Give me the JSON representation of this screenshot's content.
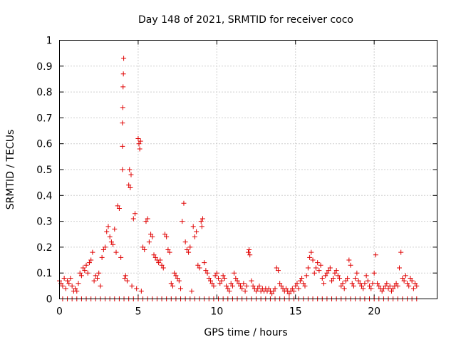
{
  "chart_data": {
    "type": "scatter",
    "title": "Day 148 of 2021, SRMTID for receiver coco",
    "xlabel": "GPS time / hours",
    "ylabel": "SRMTID / TECUs",
    "xlim": [
      0,
      24
    ],
    "ylim": [
      0,
      1
    ],
    "xticks": [
      "0",
      "5",
      "10",
      "15",
      "20"
    ],
    "yticks": [
      "0",
      "0.1",
      "0.2",
      "0.3",
      "0.4",
      "0.5",
      "0.6",
      "0.7",
      "0.8",
      "0.9",
      "1"
    ],
    "grid": true,
    "marker": "+",
    "color": "#e00000",
    "series": [
      {
        "name": "SRMTID",
        "points": [
          [
            0.0,
            0.07
          ],
          [
            0.1,
            0.06
          ],
          [
            0.2,
            0.05
          ],
          [
            0.3,
            0.08
          ],
          [
            0.4,
            0.04
          ],
          [
            0.5,
            0.07
          ],
          [
            0.6,
            0.06
          ],
          [
            0.7,
            0.08
          ],
          [
            0.8,
            0.05
          ],
          [
            0.9,
            0.03
          ],
          [
            1.0,
            0.04
          ],
          [
            1.1,
            0.03
          ],
          [
            1.2,
            0.06
          ],
          [
            1.3,
            0.1
          ],
          [
            1.4,
            0.09
          ],
          [
            1.5,
            0.12
          ],
          [
            1.6,
            0.11
          ],
          [
            1.7,
            0.13
          ],
          [
            1.8,
            0.1
          ],
          [
            1.9,
            0.14
          ],
          [
            2.0,
            0.15
          ],
          [
            2.1,
            0.18
          ],
          [
            2.2,
            0.07
          ],
          [
            2.3,
            0.09
          ],
          [
            2.4,
            0.08
          ],
          [
            2.5,
            0.1
          ],
          [
            2.6,
            0.05
          ],
          [
            2.7,
            0.16
          ],
          [
            2.8,
            0.19
          ],
          [
            2.9,
            0.2
          ],
          [
            3.0,
            0.26
          ],
          [
            3.1,
            0.28
          ],
          [
            3.2,
            0.24
          ],
          [
            3.3,
            0.22
          ],
          [
            3.4,
            0.21
          ],
          [
            3.5,
            0.27
          ],
          [
            3.6,
            0.18
          ],
          [
            3.7,
            0.36
          ],
          [
            3.8,
            0.35
          ],
          [
            3.9,
            0.16
          ],
          [
            4.0,
            0.68
          ],
          [
            4.02,
            0.74
          ],
          [
            4.04,
            0.82
          ],
          [
            4.06,
            0.87
          ],
          [
            4.08,
            0.93
          ],
          [
            4.0,
            0.59
          ],
          [
            4.0,
            0.5
          ],
          [
            4.15,
            0.08
          ],
          [
            4.2,
            0.09
          ],
          [
            4.3,
            0.07
          ],
          [
            4.4,
            0.44
          ],
          [
            4.45,
            0.5
          ],
          [
            4.5,
            0.43
          ],
          [
            4.55,
            0.48
          ],
          [
            4.6,
            0.05
          ],
          [
            4.7,
            0.31
          ],
          [
            4.8,
            0.33
          ],
          [
            4.9,
            0.04
          ],
          [
            5.0,
            0.62
          ],
          [
            5.05,
            0.6
          ],
          [
            5.1,
            0.58
          ],
          [
            5.15,
            0.61
          ],
          [
            5.2,
            0.03
          ],
          [
            5.3,
            0.2
          ],
          [
            5.4,
            0.19
          ],
          [
            5.5,
            0.3
          ],
          [
            5.6,
            0.31
          ],
          [
            5.7,
            0.22
          ],
          [
            5.8,
            0.25
          ],
          [
            5.9,
            0.24
          ],
          [
            6.0,
            0.17
          ],
          [
            6.1,
            0.16
          ],
          [
            6.2,
            0.15
          ],
          [
            6.3,
            0.14
          ],
          [
            6.4,
            0.15
          ],
          [
            6.5,
            0.13
          ],
          [
            6.6,
            0.12
          ],
          [
            6.7,
            0.25
          ],
          [
            6.8,
            0.24
          ],
          [
            6.9,
            0.19
          ],
          [
            7.0,
            0.18
          ],
          [
            7.1,
            0.06
          ],
          [
            7.2,
            0.05
          ],
          [
            7.3,
            0.1
          ],
          [
            7.4,
            0.09
          ],
          [
            7.5,
            0.08
          ],
          [
            7.6,
            0.07
          ],
          [
            7.7,
            0.04
          ],
          [
            7.8,
            0.3
          ],
          [
            7.9,
            0.37
          ],
          [
            8.0,
            0.22
          ],
          [
            8.1,
            0.19
          ],
          [
            8.2,
            0.18
          ],
          [
            8.3,
            0.2
          ],
          [
            8.4,
            0.03
          ],
          [
            8.5,
            0.28
          ],
          [
            8.6,
            0.24
          ],
          [
            8.7,
            0.26
          ],
          [
            8.8,
            0.13
          ],
          [
            8.9,
            0.12
          ],
          [
            9.0,
            0.3
          ],
          [
            9.05,
            0.28
          ],
          [
            9.1,
            0.31
          ],
          [
            9.2,
            0.14
          ],
          [
            9.3,
            0.11
          ],
          [
            9.4,
            0.1
          ],
          [
            9.5,
            0.08
          ],
          [
            9.6,
            0.07
          ],
          [
            9.7,
            0.06
          ],
          [
            9.8,
            0.05
          ],
          [
            9.9,
            0.09
          ],
          [
            10.0,
            0.1
          ],
          [
            10.1,
            0.08
          ],
          [
            10.2,
            0.06
          ],
          [
            10.3,
            0.07
          ],
          [
            10.4,
            0.09
          ],
          [
            10.5,
            0.08
          ],
          [
            10.6,
            0.05
          ],
          [
            10.7,
            0.04
          ],
          [
            10.8,
            0.03
          ],
          [
            10.9,
            0.06
          ],
          [
            11.0,
            0.05
          ],
          [
            11.1,
            0.1
          ],
          [
            11.2,
            0.08
          ],
          [
            11.3,
            0.07
          ],
          [
            11.4,
            0.06
          ],
          [
            11.5,
            0.05
          ],
          [
            11.6,
            0.04
          ],
          [
            11.7,
            0.06
          ],
          [
            11.8,
            0.03
          ],
          [
            11.9,
            0.05
          ],
          [
            12.0,
            0.18
          ],
          [
            12.05,
            0.19
          ],
          [
            12.1,
            0.17
          ],
          [
            12.2,
            0.07
          ],
          [
            12.3,
            0.05
          ],
          [
            12.4,
            0.04
          ],
          [
            12.5,
            0.03
          ],
          [
            12.6,
            0.04
          ],
          [
            12.7,
            0.05
          ],
          [
            12.8,
            0.03
          ],
          [
            12.9,
            0.04
          ],
          [
            13.0,
            0.03
          ],
          [
            13.1,
            0.04
          ],
          [
            13.2,
            0.03
          ],
          [
            13.3,
            0.04
          ],
          [
            13.4,
            0.03
          ],
          [
            13.5,
            0.02
          ],
          [
            13.6,
            0.03
          ],
          [
            13.7,
            0.04
          ],
          [
            13.8,
            0.12
          ],
          [
            13.9,
            0.11
          ],
          [
            14.0,
            0.06
          ],
          [
            14.1,
            0.05
          ],
          [
            14.2,
            0.04
          ],
          [
            14.3,
            0.03
          ],
          [
            14.4,
            0.04
          ],
          [
            14.5,
            0.03
          ],
          [
            14.6,
            0.02
          ],
          [
            14.7,
            0.03
          ],
          [
            14.8,
            0.04
          ],
          [
            14.9,
            0.03
          ],
          [
            15.0,
            0.05
          ],
          [
            15.1,
            0.06
          ],
          [
            15.2,
            0.04
          ],
          [
            15.3,
            0.07
          ],
          [
            15.4,
            0.08
          ],
          [
            15.5,
            0.06
          ],
          [
            15.6,
            0.05
          ],
          [
            15.7,
            0.09
          ],
          [
            15.8,
            0.12
          ],
          [
            15.9,
            0.16
          ],
          [
            16.0,
            0.18
          ],
          [
            16.1,
            0.15
          ],
          [
            16.2,
            0.1
          ],
          [
            16.3,
            0.12
          ],
          [
            16.4,
            0.14
          ],
          [
            16.5,
            0.11
          ],
          [
            16.6,
            0.13
          ],
          [
            16.7,
            0.08
          ],
          [
            16.8,
            0.06
          ],
          [
            16.9,
            0.09
          ],
          [
            17.0,
            0.1
          ],
          [
            17.1,
            0.11
          ],
          [
            17.2,
            0.12
          ],
          [
            17.3,
            0.07
          ],
          [
            17.4,
            0.08
          ],
          [
            17.5,
            0.1
          ],
          [
            17.6,
            0.11
          ],
          [
            17.7,
            0.09
          ],
          [
            17.8,
            0.08
          ],
          [
            17.9,
            0.05
          ],
          [
            18.0,
            0.06
          ],
          [
            18.1,
            0.04
          ],
          [
            18.2,
            0.07
          ],
          [
            18.3,
            0.08
          ],
          [
            18.4,
            0.15
          ],
          [
            18.5,
            0.13
          ],
          [
            18.6,
            0.06
          ],
          [
            18.7,
            0.05
          ],
          [
            18.8,
            0.08
          ],
          [
            18.9,
            0.1
          ],
          [
            19.0,
            0.07
          ],
          [
            19.1,
            0.06
          ],
          [
            19.2,
            0.05
          ],
          [
            19.3,
            0.04
          ],
          [
            19.4,
            0.06
          ],
          [
            19.5,
            0.09
          ],
          [
            19.6,
            0.07
          ],
          [
            19.7,
            0.05
          ],
          [
            19.8,
            0.04
          ],
          [
            19.9,
            0.06
          ],
          [
            20.0,
            0.1
          ],
          [
            20.1,
            0.17
          ],
          [
            20.2,
            0.06
          ],
          [
            20.3,
            0.05
          ],
          [
            20.4,
            0.04
          ],
          [
            20.5,
            0.03
          ],
          [
            20.6,
            0.04
          ],
          [
            20.7,
            0.05
          ],
          [
            20.8,
            0.06
          ],
          [
            20.9,
            0.04
          ],
          [
            21.0,
            0.05
          ],
          [
            21.1,
            0.03
          ],
          [
            21.2,
            0.04
          ],
          [
            21.3,
            0.05
          ],
          [
            21.4,
            0.06
          ],
          [
            21.5,
            0.05
          ],
          [
            21.6,
            0.12
          ],
          [
            21.7,
            0.18
          ],
          [
            21.8,
            0.08
          ],
          [
            21.9,
            0.07
          ],
          [
            22.0,
            0.09
          ],
          [
            22.1,
            0.06
          ],
          [
            22.2,
            0.05
          ],
          [
            22.3,
            0.08
          ],
          [
            22.4,
            0.07
          ],
          [
            22.5,
            0.04
          ],
          [
            22.6,
            0.06
          ],
          [
            22.7,
            0.05
          ],
          [
            0.2,
            0.0
          ],
          [
            0.5,
            0.0
          ],
          [
            0.8,
            0.0
          ],
          [
            1.1,
            0.0
          ],
          [
            1.4,
            0.0
          ],
          [
            1.7,
            0.0
          ],
          [
            2.0,
            0.0
          ],
          [
            2.3,
            0.0
          ],
          [
            2.6,
            0.0
          ],
          [
            2.9,
            0.0
          ],
          [
            3.2,
            0.0
          ],
          [
            3.5,
            0.0
          ],
          [
            3.8,
            0.0
          ],
          [
            4.1,
            0.0
          ],
          [
            4.4,
            0.0
          ],
          [
            4.7,
            0.0
          ],
          [
            5.0,
            0.0
          ],
          [
            5.3,
            0.0
          ],
          [
            5.6,
            0.0
          ],
          [
            5.9,
            0.0
          ],
          [
            6.2,
            0.0
          ],
          [
            6.5,
            0.0
          ],
          [
            6.8,
            0.0
          ],
          [
            7.1,
            0.0
          ],
          [
            7.4,
            0.0
          ],
          [
            7.7,
            0.0
          ],
          [
            8.0,
            0.0
          ],
          [
            8.3,
            0.0
          ],
          [
            8.6,
            0.0
          ],
          [
            8.9,
            0.0
          ],
          [
            9.2,
            0.0
          ],
          [
            9.5,
            0.0
          ],
          [
            9.8,
            0.0
          ],
          [
            10.1,
            0.0
          ],
          [
            10.4,
            0.0
          ],
          [
            10.7,
            0.0
          ],
          [
            11.0,
            0.0
          ],
          [
            11.3,
            0.0
          ],
          [
            11.6,
            0.0
          ],
          [
            11.9,
            0.0
          ],
          [
            12.2,
            0.0
          ],
          [
            12.5,
            0.0
          ],
          [
            12.8,
            0.0
          ],
          [
            13.1,
            0.0
          ],
          [
            13.4,
            0.0
          ],
          [
            13.7,
            0.0
          ],
          [
            14.0,
            0.0
          ],
          [
            14.3,
            0.0
          ],
          [
            14.6,
            0.0
          ],
          [
            14.9,
            0.0
          ],
          [
            15.2,
            0.0
          ],
          [
            15.5,
            0.0
          ],
          [
            15.8,
            0.0
          ],
          [
            16.1,
            0.0
          ],
          [
            16.4,
            0.0
          ],
          [
            16.7,
            0.0
          ],
          [
            17.0,
            0.0
          ],
          [
            17.3,
            0.0
          ],
          [
            17.6,
            0.0
          ],
          [
            17.9,
            0.0
          ],
          [
            18.2,
            0.0
          ],
          [
            18.5,
            0.0
          ],
          [
            18.8,
            0.0
          ],
          [
            19.1,
            0.0
          ],
          [
            19.4,
            0.0
          ],
          [
            19.7,
            0.0
          ],
          [
            20.0,
            0.0
          ],
          [
            20.3,
            0.0
          ],
          [
            20.6,
            0.0
          ],
          [
            20.9,
            0.0
          ],
          [
            21.2,
            0.0
          ],
          [
            21.5,
            0.0
          ],
          [
            21.8,
            0.0
          ],
          [
            22.1,
            0.0
          ],
          [
            22.4,
            0.0
          ],
          [
            22.7,
            0.0
          ]
        ]
      }
    ]
  }
}
